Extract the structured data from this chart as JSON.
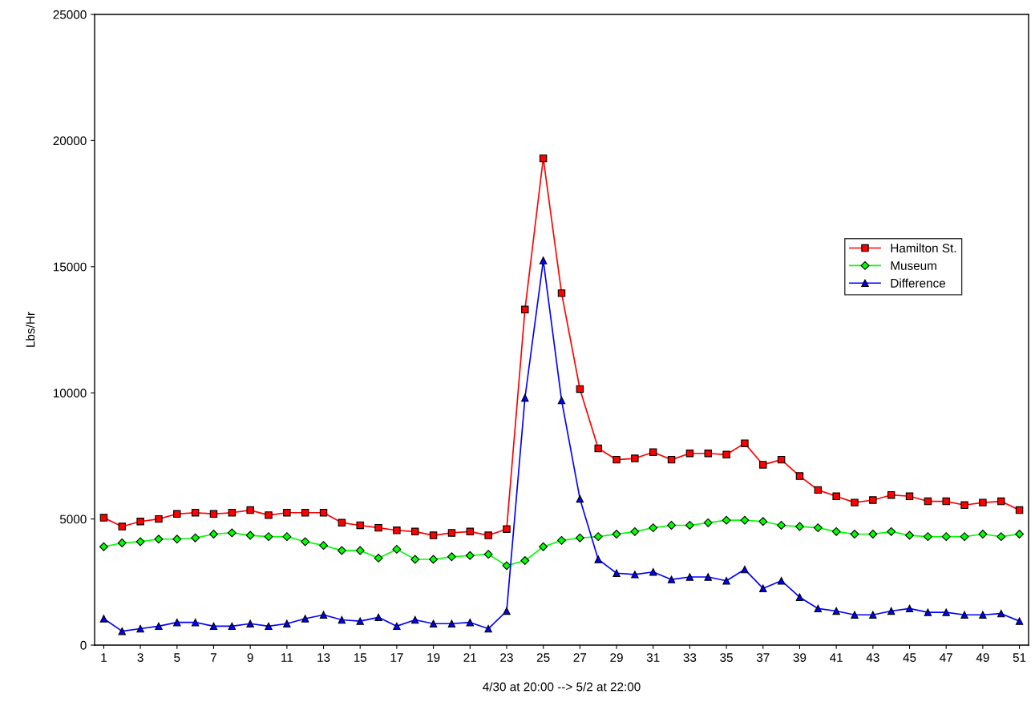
{
  "chart_data": {
    "type": "line",
    "xlabel": "4/30 at 20:00 --> 5/2 at 22:00",
    "ylabel": "Lbs/Hr",
    "x": [
      1,
      2,
      3,
      4,
      5,
      6,
      7,
      8,
      9,
      10,
      11,
      12,
      13,
      14,
      15,
      16,
      17,
      18,
      19,
      20,
      21,
      22,
      23,
      24,
      25,
      26,
      27,
      28,
      29,
      30,
      31,
      32,
      33,
      34,
      35,
      36,
      37,
      38,
      39,
      40,
      41,
      42,
      43,
      44,
      45,
      46,
      47,
      48,
      49,
      50,
      51
    ],
    "xlim": [
      0.5,
      51.5
    ],
    "xticks": [
      1,
      3,
      5,
      7,
      9,
      11,
      13,
      15,
      17,
      19,
      21,
      23,
      25,
      27,
      29,
      31,
      33,
      35,
      37,
      39,
      41,
      43,
      45,
      47,
      49,
      51
    ],
    "ylim": [
      0,
      25000
    ],
    "yticks": [
      0,
      5000,
      10000,
      15000,
      20000,
      25000
    ],
    "grid": false,
    "legend": "right",
    "series": [
      {
        "name": "Hamilton St.",
        "color": "#ff0000",
        "marker": "square",
        "values": [
          5050,
          4700,
          4900,
          5000,
          5200,
          5250,
          5200,
          5250,
          5350,
          5150,
          5250,
          5250,
          5250,
          4850,
          4750,
          4650,
          4550,
          4500,
          4350,
          4450,
          4500,
          4350,
          4600,
          13300,
          19300,
          13950,
          10150,
          7800,
          7350,
          7400,
          7650,
          7350,
          7600,
          7600,
          7550,
          8000,
          7150,
          7350,
          6700,
          6150,
          5900,
          5650,
          5750,
          5950,
          5900,
          5700,
          5700,
          5550,
          5650,
          5700,
          5350
        ]
      },
      {
        "name": "Museum",
        "color": "#00ff00",
        "marker": "diamond",
        "values": [
          3900,
          4050,
          4100,
          4200,
          4200,
          4250,
          4400,
          4450,
          4350,
          4300,
          4300,
          4100,
          3950,
          3750,
          3750,
          3450,
          3800,
          3400,
          3400,
          3500,
          3550,
          3600,
          3150,
          3350,
          3900,
          4150,
          4250,
          4300,
          4400,
          4500,
          4650,
          4750,
          4750,
          4850,
          4950,
          4950,
          4900,
          4750,
          4700,
          4650,
          4500,
          4400,
          4400,
          4500,
          4350,
          4300,
          4300,
          4300,
          4400,
          4300,
          4400
        ]
      },
      {
        "name": "Difference",
        "color": "#0000ff",
        "marker": "triangle",
        "values": [
          1050,
          550,
          650,
          750,
          900,
          900,
          750,
          750,
          850,
          750,
          850,
          1050,
          1200,
          1000,
          950,
          1100,
          750,
          1000,
          850,
          850,
          900,
          650,
          1350,
          9800,
          15250,
          9700,
          5800,
          3400,
          2850,
          2800,
          2900,
          2600,
          2700,
          2700,
          2550,
          3000,
          2250,
          2550,
          1900,
          1450,
          1350,
          1200,
          1200,
          1350,
          1450,
          1300,
          1300,
          1200,
          1200,
          1250,
          950
        ]
      }
    ]
  }
}
